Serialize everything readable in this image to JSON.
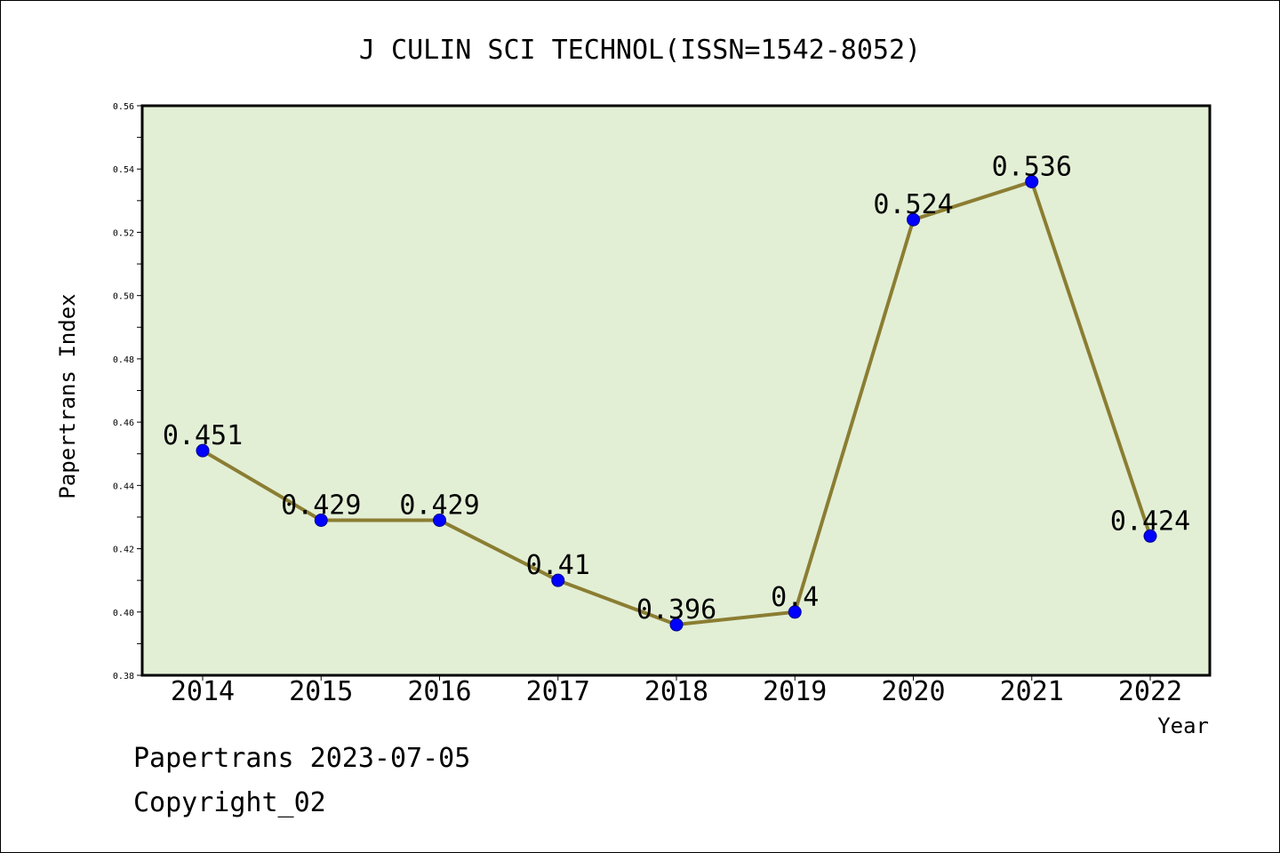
{
  "chart_data": {
    "type": "line",
    "title": "J CULIN SCI TECHNOL(ISSN=1542-8052)",
    "xlabel": "Year",
    "ylabel": "Papertrans Index",
    "categories": [
      "2014",
      "2015",
      "2016",
      "2017",
      "2018",
      "2019",
      "2020",
      "2021",
      "2022"
    ],
    "values": [
      0.451,
      0.429,
      0.429,
      0.41,
      0.396,
      0.4,
      0.524,
      0.536,
      0.424
    ],
    "data_labels": [
      "0.451",
      "0.429",
      "0.429",
      "0.41",
      "0.396",
      "0.4",
      "0.524",
      "0.536",
      "0.424"
    ],
    "ylim": [
      0.38,
      0.56
    ],
    "yticks": [
      "0.38",
      "0.40",
      "0.42",
      "0.44",
      "0.46",
      "0.48",
      "0.50",
      "0.52",
      "0.54",
      "0.56"
    ],
    "grid": false,
    "colors": {
      "plot_background": "#e2efd5",
      "line": "#8b7d32",
      "marker": "#0000ff"
    }
  },
  "footer": {
    "date": "Papertrans 2023-07-05",
    "copyright": "Copyright_02"
  }
}
